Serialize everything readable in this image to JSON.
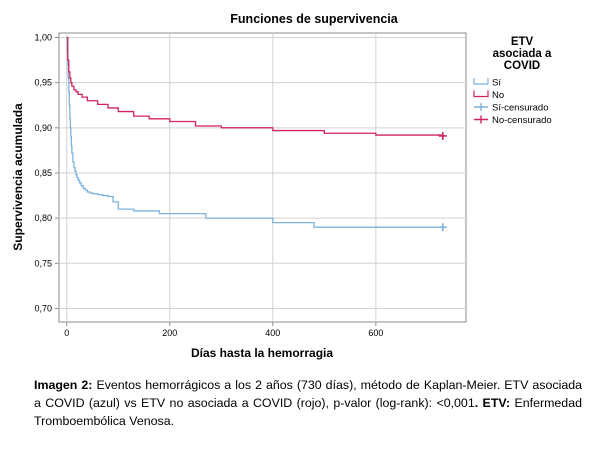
{
  "chart_data": {
    "type": "line",
    "step": true,
    "title": "Funciones de supervivencia",
    "xlabel": "Días hasta la hemorragia",
    "ylabel": "Supervivencia acumulada",
    "xlim": [
      -15,
      775
    ],
    "ylim": [
      0.685,
      1.005
    ],
    "xticks": [
      "0",
      "200",
      "400",
      "600"
    ],
    "xtick_values": [
      0,
      200,
      400,
      600
    ],
    "yticks": [
      "1,00",
      "0,95",
      "0,90",
      "0,85",
      "0,80",
      "0,75",
      "0,70"
    ],
    "ytick_values": [
      1.0,
      0.95,
      0.9,
      0.85,
      0.8,
      0.75,
      0.7
    ],
    "grid": "vertical and horizontal at major ticks",
    "legend": {
      "title": "ETV asociada a COVID",
      "placement": "right",
      "entries": [
        {
          "label": "Sí",
          "color": "#7eb2dc",
          "marker": "line"
        },
        {
          "label": "No",
          "color": "#d0245a",
          "marker": "line"
        },
        {
          "label": "Sí-censurado",
          "color": "#7eb2dc",
          "marker": "plus"
        },
        {
          "label": "No-censurado",
          "color": "#d0245a",
          "marker": "plus"
        }
      ]
    },
    "series": [
      {
        "name": "Sí",
        "color": "#7eb2dc",
        "x": [
          0,
          1,
          2,
          3,
          4,
          5,
          6,
          7,
          8,
          9,
          10,
          12,
          14,
          16,
          18,
          20,
          22,
          25,
          28,
          32,
          36,
          40,
          45,
          50,
          60,
          70,
          80,
          90,
          100,
          130,
          180,
          270,
          400,
          480,
          730
        ],
        "y": [
          1.0,
          0.985,
          0.97,
          0.955,
          0.94,
          0.925,
          0.91,
          0.9,
          0.89,
          0.88,
          0.872,
          0.862,
          0.856,
          0.852,
          0.848,
          0.845,
          0.842,
          0.839,
          0.836,
          0.833,
          0.831,
          0.829,
          0.828,
          0.827,
          0.826,
          0.825,
          0.824,
          0.818,
          0.81,
          0.808,
          0.805,
          0.8,
          0.795,
          0.79,
          0.79
        ],
        "censored_at": [
          [
            730,
            0.79
          ]
        ]
      },
      {
        "name": "No",
        "color": "#d0245a",
        "x": [
          0,
          2,
          4,
          6,
          8,
          10,
          14,
          18,
          22,
          30,
          40,
          60,
          80,
          100,
          130,
          160,
          200,
          250,
          300,
          400,
          500,
          600,
          730
        ],
        "y": [
          1.0,
          0.975,
          0.962,
          0.955,
          0.95,
          0.946,
          0.942,
          0.94,
          0.937,
          0.934,
          0.93,
          0.926,
          0.922,
          0.918,
          0.913,
          0.91,
          0.907,
          0.902,
          0.9,
          0.897,
          0.894,
          0.892,
          0.891
        ],
        "censored_at": [
          [
            730,
            0.891
          ]
        ]
      }
    ]
  },
  "caption": {
    "label": "Imagen 2:",
    "body": " Eventos hemorrágicos a los 2 años (730 días), método de Kaplan-Meier. ETV asociada a COVID (azul) vs ETV no asociada a COVID (rojo), p-valor (log-rank): <0,001",
    "abbr_label": ". ETV:",
    "abbr_text": " Enfermedad Tromboembólica Venosa."
  }
}
